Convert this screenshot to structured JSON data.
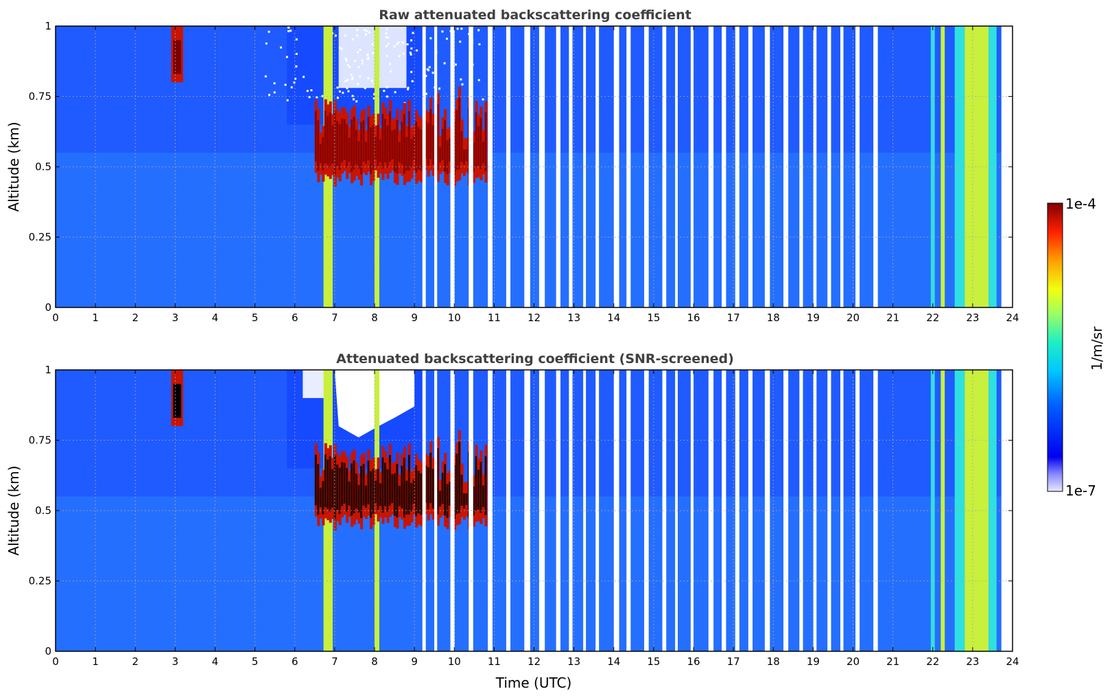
{
  "chart_data": [
    {
      "type": "heatmap",
      "title": "Raw attenuated backscattering coefficient",
      "xlabel": "",
      "ylabel": "Altitude (km)",
      "xlim": [
        0,
        24
      ],
      "ylim": [
        0,
        1
      ],
      "x_ticks": [
        "0",
        "1",
        "2",
        "3",
        "4",
        "5",
        "6",
        "7",
        "8",
        "9",
        "10",
        "11",
        "12",
        "13",
        "14",
        "15",
        "16",
        "17",
        "18",
        "19",
        "20",
        "21",
        "22",
        "23",
        "24"
      ],
      "y_ticks": [
        "0",
        "0.25",
        "0.5",
        "0.75",
        "1"
      ],
      "grid": true,
      "screened": false
    },
    {
      "type": "heatmap",
      "title": "Attenuated backscattering coefficient (SNR-screened)",
      "xlabel": "Time (UTC)",
      "ylabel": "Altitude (km)",
      "xlim": [
        0,
        24
      ],
      "ylim": [
        0,
        1
      ],
      "x_ticks": [
        "0",
        "1",
        "2",
        "3",
        "4",
        "5",
        "6",
        "7",
        "8",
        "9",
        "10",
        "11",
        "12",
        "13",
        "14",
        "15",
        "16",
        "17",
        "18",
        "19",
        "20",
        "21",
        "22",
        "23",
        "24"
      ],
      "y_ticks": [
        "0",
        "0.25",
        "0.5",
        "0.75",
        "1"
      ],
      "grid": true,
      "screened": true
    }
  ],
  "colorbar": {
    "label": "1/m/sr",
    "max_label": "1e-4",
    "min_label": "1e-7",
    "scale": "log",
    "colormap": "jet"
  },
  "colors": {
    "background_blue": "#1f5bff",
    "mid_blue": "#2a7fff",
    "cloud_red": "#c81400",
    "cloud_dark": "#7a0000",
    "yellow_green": "#c8f03c",
    "cyan": "#2fe0e0",
    "title_gray": "#404040"
  },
  "features": {
    "cloud_layer_hours": [
      6.5,
      10.8
    ],
    "cloud_base_km": 0.45,
    "cloud_top_km": 0.75,
    "data_gaps_start_hour": 9.2,
    "data_gaps_end_hour": 20.6,
    "bright_column_hours": [
      6.8,
      8.0,
      22.0,
      22.2,
      23.0
    ]
  }
}
